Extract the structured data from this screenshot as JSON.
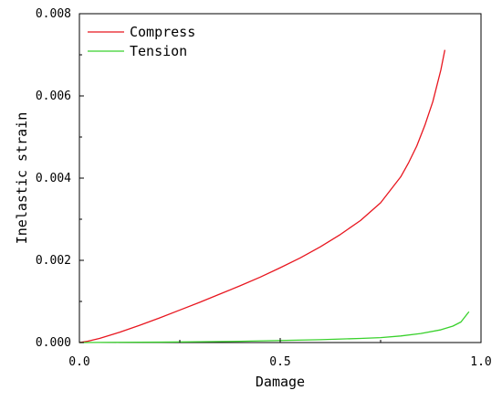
{
  "chart_data": {
    "type": "line",
    "title": "",
    "xlabel": "Damage",
    "ylabel": "Inelastic strain",
    "xlim": [
      0.0,
      1.0
    ],
    "ylim": [
      0.0,
      0.008
    ],
    "xticks": [
      "0.0",
      "0.5",
      "1.0"
    ],
    "yticks": [
      "0.000",
      "0.002",
      "0.004",
      "0.006",
      "0.008"
    ],
    "grid": false,
    "legend_position": "top-left",
    "series": [
      {
        "name": "Compress",
        "color": "#e8161f",
        "x": [
          0.0,
          0.02,
          0.05,
          0.1,
          0.15,
          0.2,
          0.25,
          0.3,
          0.35,
          0.4,
          0.45,
          0.5,
          0.55,
          0.6,
          0.65,
          0.7,
          0.75,
          0.8,
          0.82,
          0.84,
          0.86,
          0.88,
          0.9,
          0.91
        ],
        "y": [
          0.0,
          3e-05,
          0.0001,
          0.00025,
          0.00042,
          0.0006,
          0.00079,
          0.00098,
          0.00118,
          0.00138,
          0.00159,
          0.00182,
          0.00206,
          0.00233,
          0.00263,
          0.00297,
          0.0034,
          0.00403,
          0.00438,
          0.00478,
          0.00528,
          0.00586,
          0.00663,
          0.00712
        ]
      },
      {
        "name": "Tension",
        "color": "#39d12c",
        "x": [
          0.0,
          0.1,
          0.2,
          0.3,
          0.4,
          0.5,
          0.6,
          0.7,
          0.75,
          0.8,
          0.85,
          0.9,
          0.93,
          0.95,
          0.97
        ],
        "y": [
          0.0,
          5e-06,
          1e-05,
          2e-05,
          3e-05,
          5e-05,
          7e-05,
          0.0001,
          0.00012,
          0.00016,
          0.00022,
          0.00031,
          0.0004,
          0.0005,
          0.00075
        ]
      }
    ]
  }
}
